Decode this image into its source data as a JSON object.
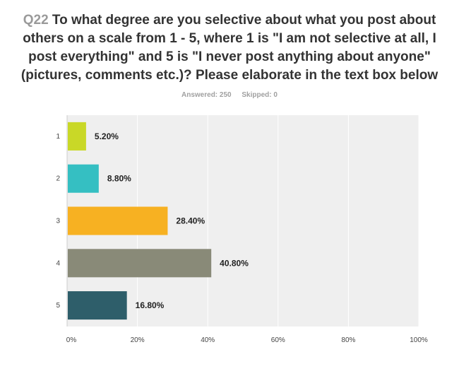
{
  "question": {
    "number": "Q22",
    "text": "To what degree are you selective about what you post about others on a scale from 1 - 5, where 1 is \"I am not selective at all, I post everything\" and 5 is \"I never post anything about anyone\" (pictures, comments etc.)? Please elaborate in the text box below"
  },
  "stats": {
    "answered": "Answered: 250",
    "skipped": "Skipped: 0"
  },
  "chart_data": {
    "type": "bar",
    "orientation": "horizontal",
    "categories": [
      "1",
      "2",
      "3",
      "4",
      "5"
    ],
    "values": [
      5.2,
      8.8,
      28.4,
      40.8,
      16.8
    ],
    "value_labels": [
      "5.20%",
      "8.80%",
      "28.40%",
      "40.80%",
      "16.80%"
    ],
    "colors": [
      "#c9d827",
      "#35bfc2",
      "#f7b122",
      "#898a78",
      "#2e5e6a"
    ],
    "xlim": [
      0,
      100
    ],
    "xticks": [
      "0%",
      "20%",
      "40%",
      "60%",
      "80%",
      "100%"
    ],
    "grid": true,
    "background": "#efefef"
  }
}
